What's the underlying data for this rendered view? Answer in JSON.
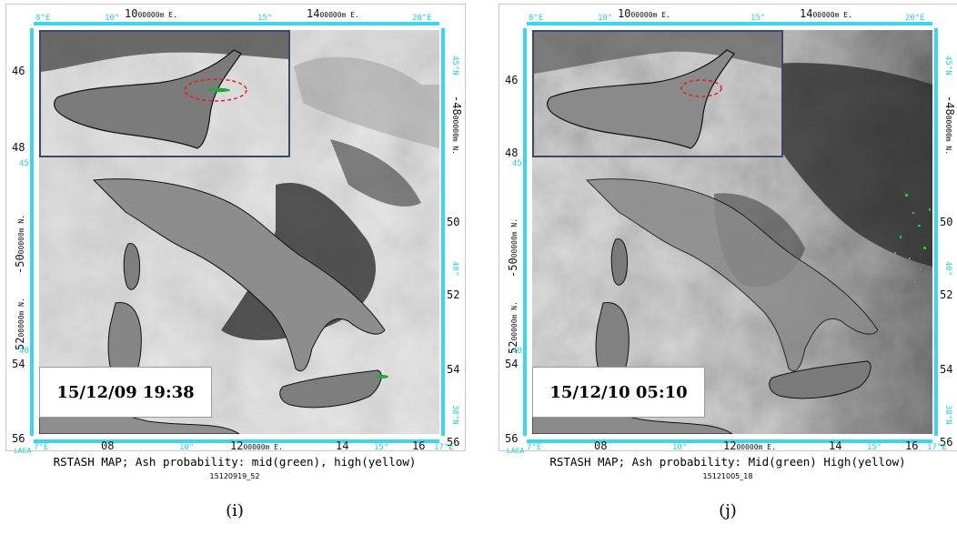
{
  "panels": [
    {
      "id": "i",
      "top_axis": {
        "left": "10",
        "mid_suffix": "00000m E.",
        "right": "14"
      },
      "top_deg": [
        "8°E",
        "10°",
        "15°",
        "20°E"
      ],
      "bottom_axis": {
        "a": "08",
        "mid": "12",
        "mid_suffix": "00000m E.",
        "b": "14",
        "c": "16"
      },
      "bottom_deg": [
        "7°E",
        "10°",
        "15°",
        "17°E"
      ],
      "left_labels": [
        "46",
        "48",
        "52",
        "54",
        "56"
      ],
      "left_mid": "-50",
      "left_mid_suffix": "00000m N.",
      "left_big": "52",
      "left_big_suffix": "00000m N.",
      "right_labels": [
        "50",
        "52",
        "54",
        "56"
      ],
      "right_top": "-48",
      "right_top_suffix": "00000m N.",
      "left_deg": [
        "45°",
        "40°",
        "38°N"
      ],
      "right_deg": [
        "45°N",
        "40°",
        "38°N"
      ],
      "laea": "LAEA",
      "stamp": "15/12/09 19:38",
      "caption": "RSTASH MAP; Ash probability: mid(green), high(yellow)",
      "subcaption": "15120919_52",
      "label": "(i)"
    },
    {
      "id": "j",
      "top_axis": {
        "left": "10",
        "mid_suffix": "00000m E.",
        "right": "14"
      },
      "top_deg": [
        "8°E",
        "10°",
        "15°",
        "20°E"
      ],
      "bottom_axis": {
        "a": "08",
        "mid": "12",
        "mid_suffix": "00000m E.",
        "b": "14",
        "c": "16"
      },
      "bottom_deg": [
        "7°E",
        "10°",
        "15°",
        "17°E"
      ],
      "left_labels": [
        "46",
        "48",
        "52",
        "54",
        "56"
      ],
      "left_mid": "-50",
      "left_mid_suffix": "00000m N.",
      "left_big": "52",
      "left_big_suffix": "00000m N.",
      "right_labels": [
        "50",
        "52",
        "54",
        "56"
      ],
      "right_top": "-48",
      "right_top_suffix": "00000m N.",
      "left_deg": [
        "45°",
        "40°",
        "38°N"
      ],
      "right_deg": [
        "45°N",
        "40°",
        "38°N"
      ],
      "laea": "LAEA",
      "stamp": "15/12/10 05:10",
      "caption": "RSTASH MAP; Ash probability: Mid(green) High(yellow)",
      "subcaption": "15121005_18",
      "label": "(j)"
    }
  ],
  "colors": {
    "axis_cyan": "#3ad8ea",
    "highlight_ring": "#e02020",
    "ash_mid": "#1faa3a"
  }
}
